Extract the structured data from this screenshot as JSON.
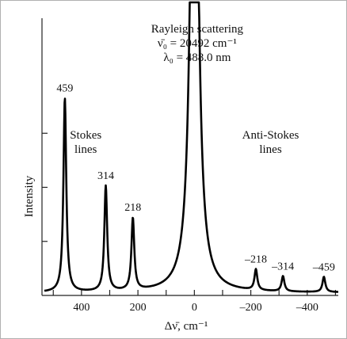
{
  "chart_data": {
    "type": "line",
    "title_lines": [
      "Rayleigh scattering",
      "ν̄₀ = 20492 cm⁻¹",
      "λ₀ = 488.0 nm"
    ],
    "xlabel": "Δν̄, cm⁻¹",
    "ylabel": "Intensity",
    "xlim": [
      540,
      -510
    ],
    "ylim": [
      0,
      1.0
    ],
    "x_ticks": [
      400,
      200,
      0,
      -200,
      -400
    ],
    "x_tick_labels": [
      "400",
      "200",
      "0",
      "–200",
      "–400"
    ],
    "peaks": [
      {
        "x": 459,
        "height": 0.7,
        "width": 6,
        "label": "459"
      },
      {
        "x": 314,
        "height": 0.38,
        "width": 6,
        "label": "314"
      },
      {
        "x": 218,
        "height": 0.26,
        "width": 6,
        "label": "218"
      },
      {
        "x": 0,
        "height": 2.5,
        "width": 14,
        "label": ""
      },
      {
        "x": -218,
        "height": 0.075,
        "width": 6,
        "label": "–218"
      },
      {
        "x": -314,
        "height": 0.055,
        "width": 6,
        "label": "–314"
      },
      {
        "x": -459,
        "height": 0.055,
        "width": 6,
        "label": "–459"
      }
    ],
    "region_labels": [
      {
        "lines": [
          "Stokes",
          "lines"
        ],
        "x": 385
      },
      {
        "lines": [
          "Anti-Stokes",
          "lines"
        ],
        "x": -270
      }
    ],
    "baseline": 0.01
  }
}
